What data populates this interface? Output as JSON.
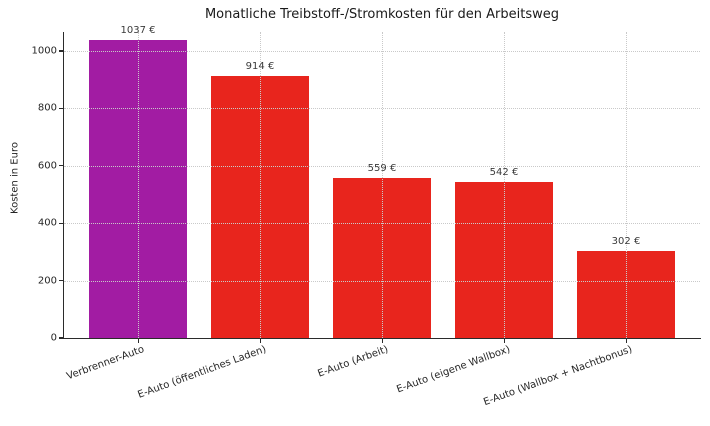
{
  "chart_data": {
    "type": "bar",
    "title": "Monatliche Treibstoff-/Stromkosten für den Arbeitsweg",
    "xlabel": "",
    "ylabel": "Kosten in Euro",
    "categories": [
      "Verbrenner-Auto",
      "E-Auto (öffentliches Laden)",
      "E-Auto (Arbeit)",
      "E-Auto (eigene Wallbox)",
      "E-Auto (Wallbox + Nachtbonus)"
    ],
    "values": [
      1037,
      914,
      559,
      542,
      302
    ],
    "value_labels": [
      "1037 €",
      "914 €",
      "559 €",
      "542 €",
      "302 €"
    ],
    "bar_colors": [
      "#a21ca3",
      "#e8251d",
      "#e8251d",
      "#e8251d",
      "#e8251d"
    ],
    "yticks": [
      0,
      200,
      400,
      600,
      800,
      1000
    ],
    "ylim": [
      0,
      1066
    ],
    "grid": "dotted both axes, drawn above bars",
    "legend": "none",
    "xtick_rotation_deg": 20
  },
  "colors": {
    "purple_bar": "#a21ca3",
    "red_bar": "#e8251d",
    "grid": "#c9c9c9",
    "axis": "#2b2b2b",
    "text": "#262626",
    "background": "#ffffff"
  }
}
